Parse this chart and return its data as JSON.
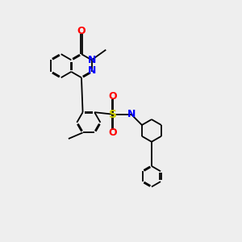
{
  "background_color": "#eeeeee",
  "bond_color": "#000000",
  "atom_colors": {
    "N": "#0000ff",
    "O": "#ff0000",
    "S": "#cccc00",
    "C": "#000000"
  },
  "figsize": [
    3.0,
    3.0
  ],
  "dpi": 100
}
